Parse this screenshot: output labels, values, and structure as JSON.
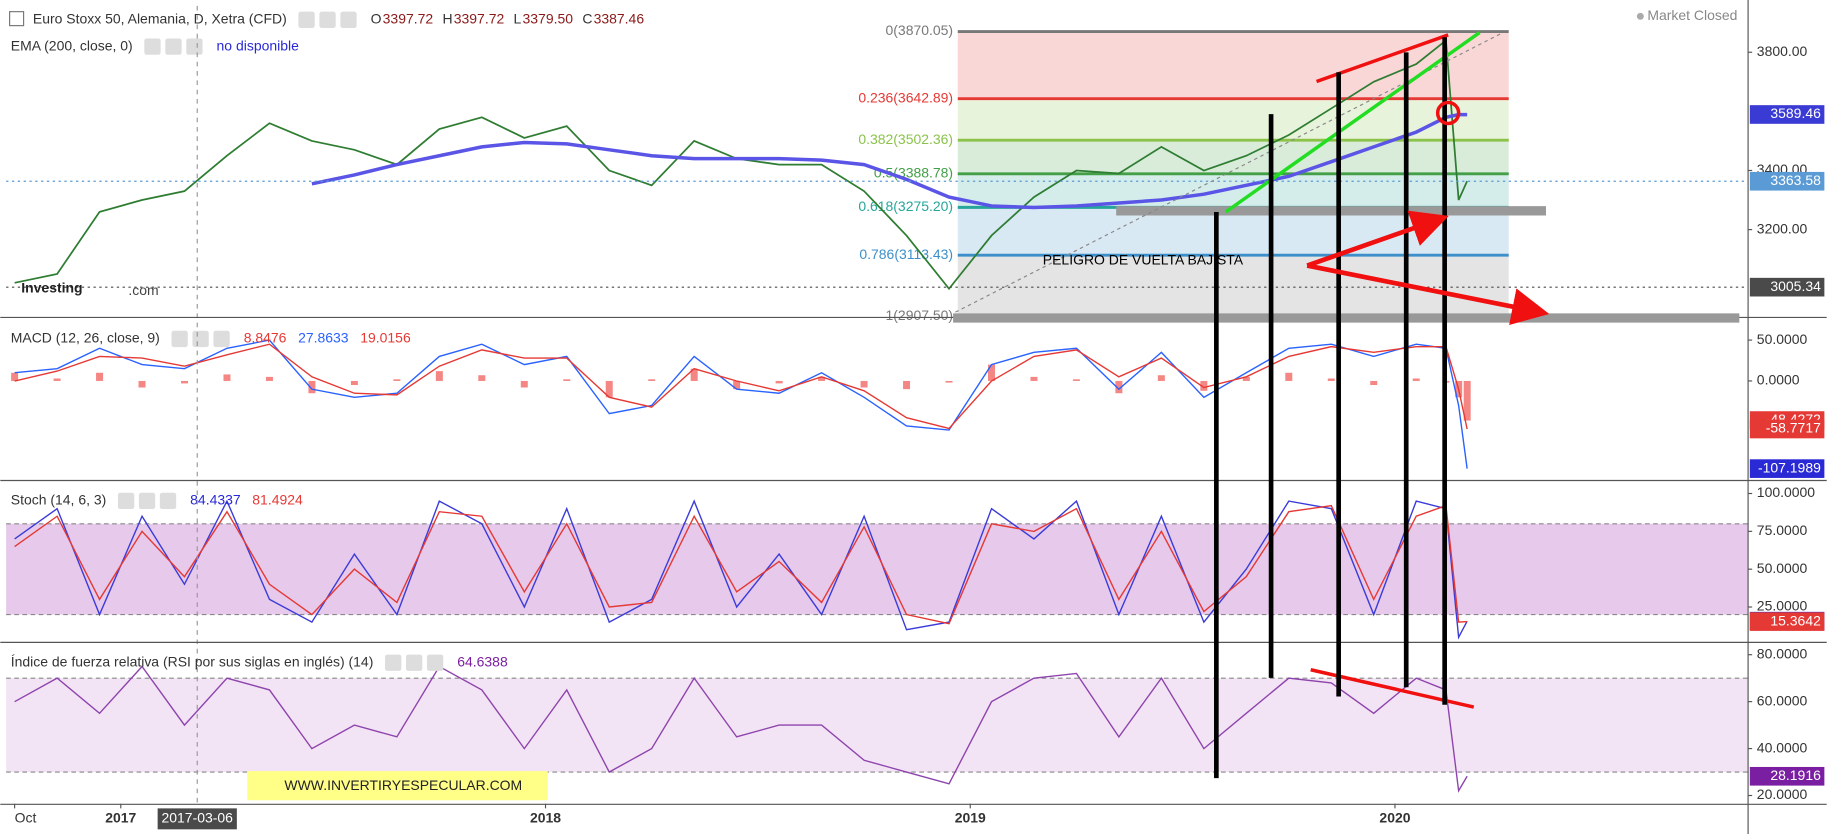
{
  "chart_data": [
    {
      "type": "line",
      "title": "Euro Stoxx 50, Alemania, D, Xetra (CFD)",
      "ohlc": [
        {
          "key": "O",
          "value": "3397.72"
        },
        {
          "key": "H",
          "value": "3397.72"
        },
        {
          "key": "L",
          "value": "3379.50"
        },
        {
          "key": "C",
          "value": "3387.46"
        }
      ],
      "indicator": "EMA (200, close, 0)",
      "indicator_value": "no disponible",
      "status": "Market Closed",
      "logo": [
        "Investing",
        ".com"
      ],
      "annotations": [
        "PELIGRO DE VUELTA BAJISTA"
      ],
      "x": [
        2016.75,
        2016.85,
        2016.95,
        2017.05,
        2017.15,
        2017.25,
        2017.35,
        2017.45,
        2017.55,
        2017.65,
        2017.75,
        2017.85,
        2017.95,
        2018.05,
        2018.15,
        2018.25,
        2018.35,
        2018.45,
        2018.55,
        2018.65,
        2018.75,
        2018.85,
        2018.95,
        2019.05,
        2019.15,
        2019.25,
        2019.35,
        2019.45,
        2019.55,
        2019.65,
        2019.75,
        2019.85,
        2019.95,
        2020.05,
        2020.12,
        2020.15,
        2020.17
      ],
      "xlim": [
        2016.73,
        2020.83
      ],
      "series": [
        {
          "color": "#2e7d32",
          "values": [
            3020,
            3050,
            3260,
            3300,
            3330,
            3450,
            3560,
            3500,
            3470,
            3420,
            3540,
            3580,
            3510,
            3550,
            3400,
            3350,
            3500,
            3440,
            3420,
            3420,
            3330,
            3180,
            3000,
            3180,
            3310,
            3400,
            3390,
            3480,
            3400,
            3450,
            3520,
            3610,
            3700,
            3760,
            3840,
            3300,
            3364
          ]
        },
        {
          "color": "#5a55e6",
          "values": [
            null,
            null,
            null,
            null,
            null,
            null,
            null,
            3355,
            3385,
            3420,
            3450,
            3480,
            3495,
            3490,
            3470,
            3450,
            3440,
            3440,
            3440,
            3435,
            3420,
            3370,
            3310,
            3280,
            3275,
            3280,
            3290,
            3300,
            3320,
            3350,
            3380,
            3430,
            3480,
            3530,
            3580,
            3589,
            3589
          ]
        }
      ],
      "ylim": [
        2905,
        3957
      ],
      "yticks": [
        {
          "value": 3200,
          "label": "3200.00"
        },
        {
          "value": 3400,
          "label": "3400.00"
        },
        {
          "value": 3800,
          "label": "3800.00"
        }
      ],
      "fib_levels": [
        {
          "label": "0(3870.05)",
          "value": 3870.05,
          "color": "#787878"
        },
        {
          "label": "0.236(3642.89)",
          "value": 3642.89,
          "color": "#e53935"
        },
        {
          "label": "0.382(3502.36)",
          "value": 3502.36,
          "color": "#8bc34a"
        },
        {
          "label": "0.5(3388.78)",
          "value": 3388.78,
          "color": "#43a047"
        },
        {
          "label": "0.618(3275.20)",
          "value": 3275.2,
          "color": "#26a69a"
        },
        {
          "label": "0.786(3113.43)",
          "value": 3113.43,
          "color": "#3d8fc9"
        },
        {
          "label": "1(2907.50)",
          "value": 2907.5,
          "color": "#787878"
        }
      ],
      "price_tags": [
        {
          "value": 3589.46,
          "color": "#3a3ad4"
        },
        {
          "value": 3363.58,
          "color": "#5b9bd5",
          "guide": true
        },
        {
          "value": 3005.34,
          "color": "#4a4a4a",
          "guide": true
        }
      ]
    },
    {
      "type": "line",
      "title": "MACD (12, 26, close, 9)",
      "readouts": [
        {
          "value": "8.8476",
          "color": "#e53935"
        },
        {
          "value": "27.8633",
          "color": "#2962ff"
        },
        {
          "value": "19.0156",
          "color": "#e53935"
        }
      ],
      "x": [
        2016.75,
        2016.85,
        2016.95,
        2017.05,
        2017.15,
        2017.25,
        2017.35,
        2017.45,
        2017.55,
        2017.65,
        2017.75,
        2017.85,
        2017.95,
        2018.05,
        2018.15,
        2018.25,
        2018.35,
        2018.45,
        2018.55,
        2018.65,
        2018.75,
        2018.85,
        2018.95,
        2019.05,
        2019.15,
        2019.25,
        2019.35,
        2019.45,
        2019.55,
        2019.65,
        2019.75,
        2019.85,
        2019.95,
        2020.05,
        2020.12,
        2020.15,
        2020.17
      ],
      "xlim": [
        2016.73,
        2020.83
      ],
      "series": [
        {
          "type": "bar",
          "color": "#ef5350",
          "values": [
            10,
            3,
            10,
            -8,
            -3,
            8,
            5,
            -15,
            -5,
            2,
            12,
            7,
            -8,
            2,
            -20,
            2,
            15,
            -10,
            -3,
            5,
            -8,
            -10,
            -2,
            20,
            5,
            2,
            -15,
            7,
            -12,
            5,
            10,
            3,
            -5,
            3,
            -2,
            -20,
            -48.4272
          ]
        },
        {
          "color": "#2962ff",
          "values": [
            10,
            15,
            40,
            20,
            15,
            40,
            50,
            -10,
            -20,
            -15,
            30,
            45,
            20,
            30,
            -40,
            -30,
            30,
            -10,
            -15,
            10,
            -20,
            -55,
            -60,
            20,
            35,
            40,
            -10,
            35,
            -20,
            10,
            40,
            45,
            30,
            45,
            40,
            -30,
            -107.1989
          ]
        },
        {
          "color": "#e53935",
          "values": [
            0,
            12,
            30,
            28,
            18,
            32,
            45,
            5,
            -15,
            -17,
            18,
            38,
            28,
            28,
            -20,
            -32,
            15,
            0,
            -12,
            5,
            -12,
            -45,
            -58,
            0,
            30,
            38,
            5,
            28,
            -8,
            5,
            30,
            42,
            35,
            42,
            42,
            -10,
            -58.7717
          ]
        }
      ],
      "ylim": [
        -121,
        77
      ],
      "yticks": [
        {
          "value": 50,
          "label": "50.0000"
        },
        {
          "value": 0,
          "label": "0.0000"
        }
      ],
      "price_tags": [
        {
          "value": -48.4272,
          "color": "#e53935"
        },
        {
          "value": -58.7717,
          "color": "#e53935"
        },
        {
          "value": -107.1989,
          "color": "#2929d6"
        }
      ]
    },
    {
      "type": "line",
      "title": "Stoch (14, 6, 3)",
      "readouts": [
        {
          "value": "84.4337",
          "color": "#2929d6"
        },
        {
          "value": "81.4924",
          "color": "#e53935"
        }
      ],
      "x": [
        2016.75,
        2016.85,
        2016.95,
        2017.05,
        2017.15,
        2017.25,
        2017.35,
        2017.45,
        2017.55,
        2017.65,
        2017.75,
        2017.85,
        2017.95,
        2018.05,
        2018.15,
        2018.25,
        2018.35,
        2018.45,
        2018.55,
        2018.65,
        2018.75,
        2018.85,
        2018.95,
        2019.05,
        2019.15,
        2019.25,
        2019.35,
        2019.45,
        2019.55,
        2019.65,
        2019.75,
        2019.85,
        2019.95,
        2020.05,
        2020.12,
        2020.15,
        2020.17
      ],
      "xlim": [
        2016.73,
        2020.83
      ],
      "band": [
        20,
        80
      ],
      "band_color": "#9c27b0",
      "series": [
        {
          "color": "#3b3bd9",
          "values": [
            70,
            90,
            20,
            85,
            40,
            95,
            30,
            15,
            60,
            20,
            95,
            80,
            25,
            90,
            15,
            30,
            95,
            25,
            60,
            20,
            85,
            10,
            15,
            90,
            70,
            95,
            20,
            85,
            15,
            50,
            95,
            90,
            20,
            95,
            90,
            5,
            15.6366
          ]
        },
        {
          "color": "#e53935",
          "values": [
            65,
            85,
            30,
            75,
            45,
            88,
            40,
            20,
            50,
            28,
            88,
            85,
            35,
            80,
            25,
            28,
            85,
            35,
            55,
            28,
            78,
            20,
            14,
            80,
            75,
            90,
            30,
            75,
            22,
            45,
            88,
            92,
            30,
            85,
            92,
            15,
            15.3642
          ]
        }
      ],
      "ylim": [
        2,
        109
      ],
      "yticks": [
        {
          "value": 100,
          "label": "100.0000"
        },
        {
          "value": 75,
          "label": "75.0000"
        },
        {
          "value": 50,
          "label": "50.0000"
        },
        {
          "value": 25,
          "label": "25.0000"
        }
      ],
      "price_tags": [
        {
          "value": 15.6366,
          "color": "#2929d6"
        },
        {
          "value": 15.3642,
          "color": "#e53935"
        }
      ]
    },
    {
      "type": "line",
      "title": "Índice de fuerza relativa (RSI por sus siglas en inglés) (14)",
      "readouts": [
        {
          "value": "64.6388",
          "color": "#7b1fa2"
        }
      ],
      "watermark": "WWW.INVERTIRYESPECULAR.COM",
      "x": [
        2016.75,
        2016.85,
        2016.95,
        2017.05,
        2017.15,
        2017.25,
        2017.35,
        2017.45,
        2017.55,
        2017.65,
        2017.75,
        2017.85,
        2017.95,
        2018.05,
        2018.15,
        2018.25,
        2018.35,
        2018.45,
        2018.55,
        2018.65,
        2018.75,
        2018.85,
        2018.95,
        2019.05,
        2019.15,
        2019.25,
        2019.35,
        2019.45,
        2019.55,
        2019.65,
        2019.75,
        2019.85,
        2019.95,
        2020.05,
        2020.12,
        2020.15,
        2020.17
      ],
      "xlim": [
        2016.73,
        2020.83
      ],
      "xticks": [
        {
          "value": 2016.75,
          "label": "Oct"
        },
        2017,
        2018,
        2019,
        2020
      ],
      "cursor": {
        "value": 2017.18,
        "label": "2017-03-06"
      },
      "band": [
        30,
        70
      ],
      "band_color": "#ce93d8",
      "series": [
        {
          "color": "#8e44ad",
          "values": [
            60,
            70,
            55,
            75,
            50,
            70,
            65,
            40,
            50,
            45,
            75,
            65,
            40,
            65,
            30,
            40,
            70,
            45,
            50,
            50,
            35,
            30,
            25,
            60,
            70,
            72,
            45,
            70,
            40,
            55,
            70,
            68,
            55,
            70,
            65,
            22,
            28.1916
          ]
        }
      ],
      "ylim": [
        16.5,
        85.5
      ],
      "yticks": [
        {
          "value": 80,
          "label": "80.0000"
        },
        {
          "value": 60,
          "label": "60.0000"
        },
        {
          "value": 40,
          "label": "40.0000"
        },
        {
          "value": 20,
          "label": "20.0000"
        }
      ],
      "price_tags": [
        {
          "value": 28.1916,
          "color": "#7b1fa2"
        }
      ]
    }
  ]
}
